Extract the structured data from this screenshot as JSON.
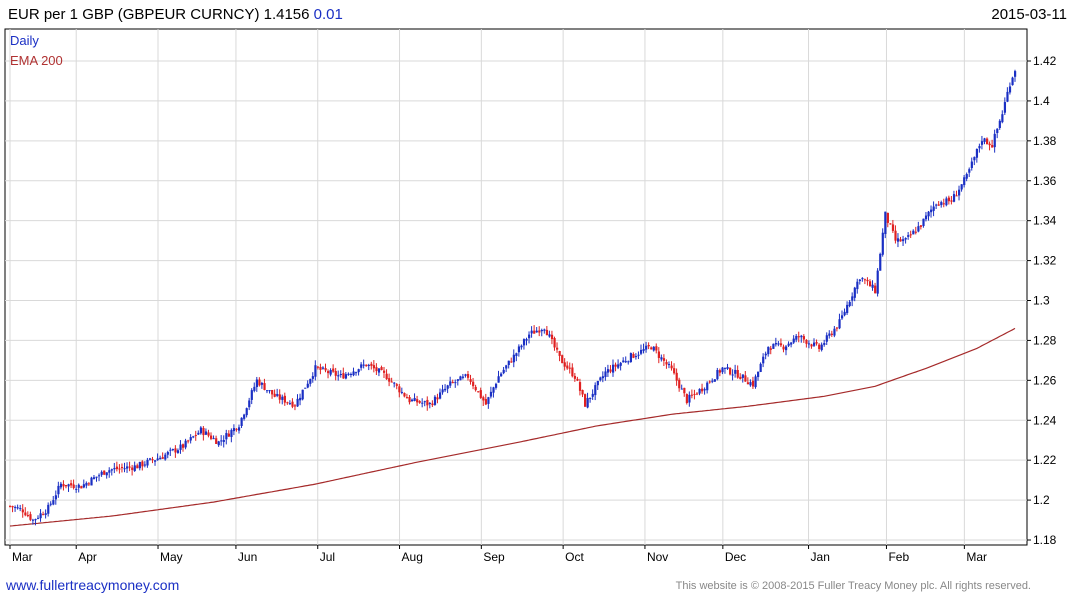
{
  "header": {
    "title": "EUR per 1 GBP (GBPEUR CURNCY) 1.4156",
    "change": "0.01",
    "date": "2015-03-11"
  },
  "legend": {
    "daily": "Daily",
    "ema": "EMA 200"
  },
  "footer": {
    "url": "www.fullertreacymoney.com",
    "copyright": "This website is © 2008-2015 Fuller Treacy Money plc. All rights reserved."
  },
  "colors": {
    "up": "#1a2fc4",
    "down": "#e02020",
    "ema": "#a52a2a",
    "grid": "#d9d9d9",
    "axis": "#000000"
  },
  "chart_data": {
    "type": "line",
    "series_style": "candlestick",
    "x_ticks": [
      "Mar",
      "Apr",
      "May",
      "Jun",
      "Jul",
      "Aug",
      "Sep",
      "Oct",
      "Nov",
      "Dec",
      "Jan",
      "Feb",
      "Mar"
    ],
    "y_ticks": [
      1.18,
      1.2,
      1.22,
      1.24,
      1.26,
      1.28,
      1.3,
      1.32,
      1.34,
      1.36,
      1.38,
      1.4,
      1.42
    ],
    "ylim": [
      1.178,
      1.43
    ],
    "grid": true,
    "price_anchors": [
      [
        0,
        1.197
      ],
      [
        5,
        1.195
      ],
      [
        9,
        1.19
      ],
      [
        15,
        1.196
      ],
      [
        20,
        1.208
      ],
      [
        28,
        1.207
      ],
      [
        38,
        1.215
      ],
      [
        50,
        1.217
      ],
      [
        60,
        1.222
      ],
      [
        68,
        1.227
      ],
      [
        75,
        1.235
      ],
      [
        82,
        1.229
      ],
      [
        90,
        1.238
      ],
      [
        97,
        1.26
      ],
      [
        104,
        1.252
      ],
      [
        112,
        1.248
      ],
      [
        120,
        1.266
      ],
      [
        130,
        1.262
      ],
      [
        140,
        1.268
      ],
      [
        148,
        1.262
      ],
      [
        157,
        1.25
      ],
      [
        165,
        1.248
      ],
      [
        173,
        1.258
      ],
      [
        180,
        1.262
      ],
      [
        187,
        1.248
      ],
      [
        192,
        1.262
      ],
      [
        198,
        1.272
      ],
      [
        204,
        1.283
      ],
      [
        210,
        1.287
      ],
      [
        216,
        1.271
      ],
      [
        222,
        1.262
      ],
      [
        226,
        1.248
      ],
      [
        234,
        1.264
      ],
      [
        244,
        1.272
      ],
      [
        252,
        1.277
      ],
      [
        260,
        1.265
      ],
      [
        266,
        1.25
      ],
      [
        272,
        1.256
      ],
      [
        280,
        1.266
      ],
      [
        286,
        1.263
      ],
      [
        292,
        1.258
      ],
      [
        298,
        1.277
      ],
      [
        304,
        1.277
      ],
      [
        310,
        1.282
      ],
      [
        318,
        1.276
      ],
      [
        326,
        1.289
      ],
      [
        334,
        1.312
      ],
      [
        340,
        1.305
      ],
      [
        344,
        1.343
      ],
      [
        348,
        1.33
      ],
      [
        352,
        1.33
      ],
      [
        358,
        1.338
      ],
      [
        364,
        1.349
      ],
      [
        370,
        1.35
      ],
      [
        376,
        1.362
      ],
      [
        382,
        1.381
      ],
      [
        386,
        1.378
      ],
      [
        390,
        1.394
      ],
      [
        393,
        1.409
      ],
      [
        395,
        1.416
      ]
    ],
    "ema": [
      [
        0,
        1.187
      ],
      [
        40,
        1.192
      ],
      [
        80,
        1.199
      ],
      [
        120,
        1.208
      ],
      [
        160,
        1.219
      ],
      [
        200,
        1.229
      ],
      [
        230,
        1.237
      ],
      [
        260,
        1.243
      ],
      [
        290,
        1.247
      ],
      [
        320,
        1.252
      ],
      [
        340,
        1.257
      ],
      [
        360,
        1.266
      ],
      [
        380,
        1.276
      ],
      [
        395,
        1.286
      ]
    ]
  }
}
